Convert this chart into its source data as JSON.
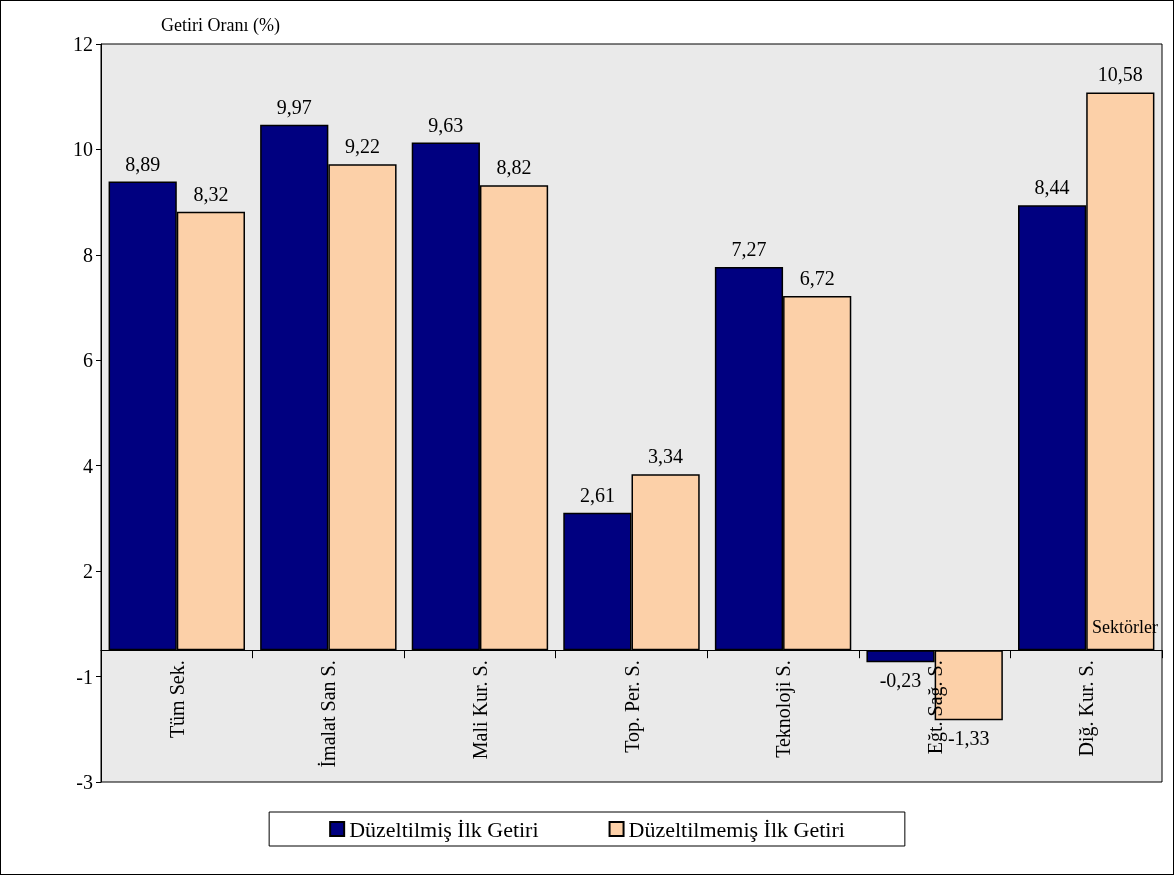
{
  "chart_data": {
    "type": "bar",
    "ylabel": "Getiri Oranı (%)",
    "xlabel": "Sektörler",
    "categories": [
      "Tüm Sek.",
      "İmalat San S.",
      "Mali Kur. S.",
      "Top. Per. S.",
      "Teknoloji S.",
      "Eğt. Sağ. S.",
      "Diğ. Kur. S."
    ],
    "series": [
      {
        "name": "Düzeltilmiş İlk Getiri",
        "color": "#000080",
        "values": [
          8.89,
          9.97,
          9.63,
          2.61,
          7.27,
          -0.23,
          8.44
        ],
        "value_labels": [
          "8,89",
          "9,97",
          "9,63",
          "2,61",
          "7,27",
          "-0,23",
          "8,44"
        ]
      },
      {
        "name": "Düzeltilmemiş İlk Getiri",
        "color": "#fcd0a8",
        "values": [
          8.32,
          9.22,
          8.82,
          3.34,
          6.72,
          -1.33,
          10.58
        ],
        "value_labels": [
          "8,32",
          "9,22",
          "8,82",
          "3,34",
          "6,72",
          "-1,33",
          "10,58"
        ]
      }
    ],
    "ylim": [
      -2.5,
      11.5
    ],
    "yticks": [
      {
        "value": -2.5,
        "label": "-3"
      },
      {
        "value": -0.5,
        "label": "-1"
      },
      {
        "value": 1.5,
        "label": "2"
      },
      {
        "value": 3.5,
        "label": "4"
      },
      {
        "value": 5.5,
        "label": "6"
      },
      {
        "value": 7.5,
        "label": "8"
      },
      {
        "value": 9.5,
        "label": "10"
      },
      {
        "value": 11.5,
        "label": "12"
      }
    ],
    "grid": false,
    "legend": "bottom"
  }
}
